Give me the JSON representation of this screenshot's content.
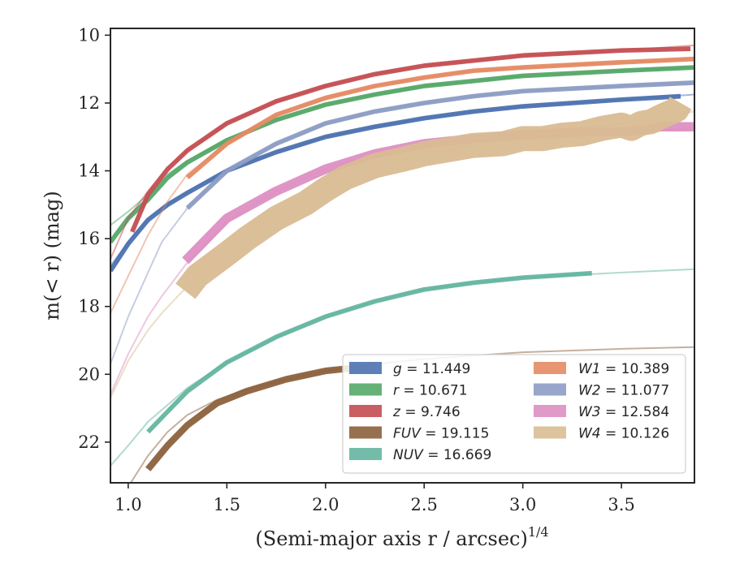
{
  "chart_data": {
    "type": "line",
    "xlabel": "(Semi-major axis r / arcsec)",
    "xlabel_sup": "1/4",
    "ylabel": "m(< r) (mag)",
    "xlim": [
      0.91,
      3.87
    ],
    "ylim": [
      23.2,
      9.8
    ],
    "y_inverted": true,
    "grid": false,
    "legend_position": "lower-right",
    "xticks": [
      1.0,
      1.5,
      2.0,
      2.5,
      3.0,
      3.5
    ],
    "xtick_labels": [
      "1.0",
      "1.5",
      "2.0",
      "2.5",
      "3.0",
      "3.5"
    ],
    "yticks": [
      10,
      12,
      14,
      16,
      18,
      20,
      22
    ],
    "ytick_labels": [
      "10",
      "12",
      "14",
      "16",
      "18",
      "20",
      "22"
    ],
    "series": [
      {
        "name": "g",
        "value": "11.449",
        "color": "#4c72b0",
        "band": 0.05,
        "model": [
          [
            0.91,
            16.8
          ],
          [
            1.0,
            16.1
          ],
          [
            1.1,
            15.4
          ],
          [
            1.2,
            15.0
          ],
          [
            1.3,
            14.6
          ],
          [
            1.5,
            14.0
          ],
          [
            1.75,
            13.45
          ],
          [
            2.0,
            13.0
          ],
          [
            2.25,
            12.7
          ],
          [
            2.5,
            12.45
          ],
          [
            2.75,
            12.25
          ],
          [
            3.0,
            12.1
          ],
          [
            3.5,
            11.9
          ],
          [
            3.87,
            11.75
          ]
        ],
        "data": [
          [
            0.91,
            16.95
          ],
          [
            1.0,
            16.15
          ],
          [
            1.1,
            15.45
          ],
          [
            1.2,
            15.0
          ],
          [
            1.3,
            14.65
          ],
          [
            1.5,
            14.0
          ],
          [
            1.75,
            13.45
          ],
          [
            2.0,
            13.0
          ],
          [
            2.25,
            12.7
          ],
          [
            2.5,
            12.45
          ],
          [
            2.75,
            12.25
          ],
          [
            3.0,
            12.1
          ],
          [
            3.5,
            11.9
          ],
          [
            3.8,
            11.8
          ]
        ]
      },
      {
        "name": "r",
        "value": "10.671",
        "color": "#55a868",
        "band": 0.05,
        "model": [
          [
            0.91,
            15.6
          ],
          [
            1.0,
            15.2
          ],
          [
            1.1,
            14.7
          ],
          [
            1.2,
            14.1
          ],
          [
            1.3,
            13.7
          ],
          [
            1.5,
            13.1
          ],
          [
            1.75,
            12.5
          ],
          [
            2.0,
            12.05
          ],
          [
            2.25,
            11.75
          ],
          [
            2.5,
            11.5
          ],
          [
            2.75,
            11.35
          ],
          [
            3.0,
            11.2
          ],
          [
            3.5,
            11.05
          ],
          [
            3.87,
            10.95
          ]
        ],
        "data": [
          [
            0.91,
            16.1
          ],
          [
            1.0,
            15.4
          ],
          [
            1.1,
            14.85
          ],
          [
            1.2,
            14.2
          ],
          [
            1.3,
            13.75
          ],
          [
            1.5,
            13.1
          ],
          [
            1.75,
            12.5
          ],
          [
            2.0,
            12.05
          ],
          [
            2.25,
            11.75
          ],
          [
            2.5,
            11.5
          ],
          [
            2.75,
            11.35
          ],
          [
            3.0,
            11.2
          ],
          [
            3.5,
            11.05
          ],
          [
            3.87,
            10.95
          ]
        ]
      },
      {
        "name": "z",
        "value": "9.746",
        "color": "#c44e52",
        "band": 0.05,
        "model": [
          [
            0.91,
            16.6
          ],
          [
            1.0,
            15.4
          ],
          [
            1.1,
            14.6
          ],
          [
            1.2,
            13.9
          ],
          [
            1.3,
            13.4
          ],
          [
            1.5,
            12.6
          ],
          [
            1.75,
            11.95
          ],
          [
            2.0,
            11.5
          ],
          [
            2.25,
            11.15
          ],
          [
            2.5,
            10.9
          ],
          [
            2.75,
            10.75
          ],
          [
            3.0,
            10.6
          ],
          [
            3.5,
            10.45
          ],
          [
            3.87,
            10.3
          ]
        ],
        "data": [
          [
            1.02,
            15.8
          ],
          [
            1.1,
            14.7
          ],
          [
            1.2,
            13.95
          ],
          [
            1.3,
            13.4
          ],
          [
            1.5,
            12.6
          ],
          [
            1.75,
            11.95
          ],
          [
            2.0,
            11.5
          ],
          [
            2.25,
            11.15
          ],
          [
            2.5,
            10.9
          ],
          [
            2.75,
            10.75
          ],
          [
            3.0,
            10.6
          ],
          [
            3.5,
            10.45
          ],
          [
            3.85,
            10.4
          ]
        ]
      },
      {
        "name": "FUV",
        "value": "19.115",
        "color": "#8c613c",
        "band": 0.08,
        "model": [
          [
            0.98,
            23.5
          ],
          [
            1.1,
            22.4
          ],
          [
            1.2,
            21.7
          ],
          [
            1.3,
            21.2
          ],
          [
            1.45,
            20.75
          ],
          [
            1.6,
            20.45
          ],
          [
            1.8,
            20.15
          ],
          [
            2.0,
            19.9
          ],
          [
            2.25,
            19.7
          ],
          [
            2.5,
            19.55
          ],
          [
            2.75,
            19.45
          ],
          [
            3.0,
            19.35
          ],
          [
            3.5,
            19.25
          ],
          [
            3.87,
            19.2
          ]
        ],
        "data": [
          [
            1.1,
            22.8
          ],
          [
            1.2,
            22.1
          ],
          [
            1.3,
            21.5
          ],
          [
            1.45,
            20.85
          ],
          [
            1.6,
            20.5
          ],
          [
            1.8,
            20.15
          ],
          [
            2.0,
            19.9
          ],
          [
            2.25,
            19.75
          ]
        ]
      },
      {
        "name": "NUV",
        "value": "16.669",
        "color": "#64b5a0",
        "band": 0.05,
        "model": [
          [
            0.91,
            22.7
          ],
          [
            1.0,
            22.1
          ],
          [
            1.1,
            21.4
          ],
          [
            1.3,
            20.4
          ],
          [
            1.5,
            19.65
          ],
          [
            1.75,
            18.9
          ],
          [
            2.0,
            18.3
          ],
          [
            2.25,
            17.85
          ],
          [
            2.5,
            17.5
          ],
          [
            2.75,
            17.3
          ],
          [
            3.0,
            17.15
          ],
          [
            3.5,
            17.0
          ],
          [
            3.87,
            16.9
          ]
        ],
        "data": [
          [
            1.1,
            21.7
          ],
          [
            1.2,
            21.1
          ],
          [
            1.3,
            20.5
          ],
          [
            1.5,
            19.65
          ],
          [
            1.75,
            18.9
          ],
          [
            2.0,
            18.3
          ],
          [
            2.25,
            17.85
          ],
          [
            2.5,
            17.5
          ],
          [
            2.75,
            17.3
          ],
          [
            3.0,
            17.15
          ],
          [
            3.35,
            17.02
          ]
        ]
      },
      {
        "name": "W1",
        "value": "10.389",
        "color": "#e58a63",
        "band": 0.05,
        "model": [
          [
            0.91,
            18.2
          ],
          [
            1.0,
            17.1
          ],
          [
            1.1,
            15.9
          ],
          [
            1.2,
            14.9
          ],
          [
            1.3,
            14.1
          ],
          [
            1.5,
            13.2
          ],
          [
            1.75,
            12.35
          ],
          [
            2.0,
            11.85
          ],
          [
            2.25,
            11.5
          ],
          [
            2.5,
            11.25
          ],
          [
            2.75,
            11.05
          ],
          [
            3.0,
            10.95
          ],
          [
            3.5,
            10.8
          ],
          [
            3.87,
            10.7
          ]
        ],
        "data": [
          [
            1.3,
            14.2
          ],
          [
            1.5,
            13.2
          ],
          [
            1.75,
            12.35
          ],
          [
            2.0,
            11.85
          ],
          [
            2.25,
            11.5
          ],
          [
            2.5,
            11.25
          ],
          [
            2.75,
            11.05
          ],
          [
            3.0,
            10.95
          ],
          [
            3.5,
            10.8
          ],
          [
            3.87,
            10.7
          ]
        ]
      },
      {
        "name": "W2",
        "value": "11.077",
        "color": "#8c9cc4",
        "band": 0.05,
        "model": [
          [
            0.91,
            19.7
          ],
          [
            1.0,
            18.3
          ],
          [
            1.1,
            17.0
          ],
          [
            1.17,
            16.1
          ],
          [
            1.3,
            15.1
          ],
          [
            1.5,
            14.0
          ],
          [
            1.75,
            13.2
          ],
          [
            2.0,
            12.6
          ],
          [
            2.25,
            12.25
          ],
          [
            2.5,
            12.0
          ],
          [
            2.75,
            11.8
          ],
          [
            3.0,
            11.65
          ],
          [
            3.5,
            11.5
          ],
          [
            3.87,
            11.4
          ]
        ],
        "data": [
          [
            1.3,
            15.1
          ],
          [
            1.5,
            14.0
          ],
          [
            1.75,
            13.2
          ],
          [
            2.0,
            12.6
          ],
          [
            2.25,
            12.25
          ],
          [
            2.5,
            12.0
          ],
          [
            2.75,
            11.8
          ],
          [
            3.0,
            11.65
          ],
          [
            3.5,
            11.5
          ],
          [
            3.87,
            11.4
          ]
        ]
      },
      {
        "name": "W3",
        "value": "12.584",
        "color": "#dd8fc2",
        "band": 0.12,
        "model": [
          [
            0.91,
            20.6
          ],
          [
            1.0,
            19.4
          ],
          [
            1.1,
            18.3
          ],
          [
            1.17,
            17.7
          ],
          [
            1.3,
            16.7
          ],
          [
            1.5,
            15.5
          ],
          [
            1.75,
            14.6
          ],
          [
            2.0,
            13.95
          ],
          [
            2.25,
            13.5
          ],
          [
            2.5,
            13.2
          ],
          [
            2.75,
            13.05
          ],
          [
            3.0,
            12.95
          ],
          [
            3.5,
            12.85
          ],
          [
            3.87,
            12.75
          ]
        ],
        "data": [
          [
            1.29,
            16.65
          ],
          [
            1.5,
            15.4
          ],
          [
            1.75,
            14.6
          ],
          [
            2.0,
            13.95
          ],
          [
            2.25,
            13.5
          ],
          [
            2.5,
            13.2
          ],
          [
            2.75,
            13.05
          ],
          [
            3.0,
            12.95
          ],
          [
            3.3,
            12.85
          ],
          [
            3.5,
            12.85
          ],
          [
            3.6,
            12.8
          ],
          [
            3.7,
            12.7
          ],
          [
            3.87,
            12.7
          ]
        ]
      },
      {
        "name": "W4",
        "value": "10.126",
        "color": "#d9bc94",
        "band": 0.35,
        "model": [
          [
            0.91,
            20.7
          ],
          [
            1.0,
            19.6
          ],
          [
            1.1,
            18.7
          ],
          [
            1.17,
            18.2
          ],
          [
            1.3,
            17.4
          ],
          [
            1.5,
            16.35
          ],
          [
            1.75,
            15.3
          ],
          [
            2.0,
            14.45
          ],
          [
            2.25,
            13.9
          ],
          [
            2.5,
            13.5
          ],
          [
            2.75,
            13.25
          ],
          [
            3.0,
            13.0
          ],
          [
            3.3,
            12.8
          ],
          [
            3.5,
            12.6
          ],
          [
            3.87,
            12.25
          ]
        ],
        "data": [
          [
            1.29,
            17.55
          ],
          [
            1.35,
            17.1
          ],
          [
            1.5,
            16.45
          ],
          [
            1.6,
            16.0
          ],
          [
            1.75,
            15.4
          ],
          [
            1.9,
            14.95
          ],
          [
            2.0,
            14.55
          ],
          [
            2.1,
            14.2
          ],
          [
            2.25,
            13.85
          ],
          [
            2.4,
            13.65
          ],
          [
            2.5,
            13.5
          ],
          [
            2.6,
            13.4
          ],
          [
            2.75,
            13.25
          ],
          [
            2.9,
            13.2
          ],
          [
            3.0,
            13.05
          ],
          [
            3.1,
            13.05
          ],
          [
            3.2,
            12.95
          ],
          [
            3.3,
            12.9
          ],
          [
            3.4,
            12.75
          ],
          [
            3.5,
            12.65
          ],
          [
            3.55,
            12.75
          ],
          [
            3.6,
            12.6
          ],
          [
            3.65,
            12.55
          ],
          [
            3.7,
            12.4
          ],
          [
            3.78,
            12.2
          ],
          [
            3.8,
            12.0
          ]
        ]
      }
    ]
  }
}
